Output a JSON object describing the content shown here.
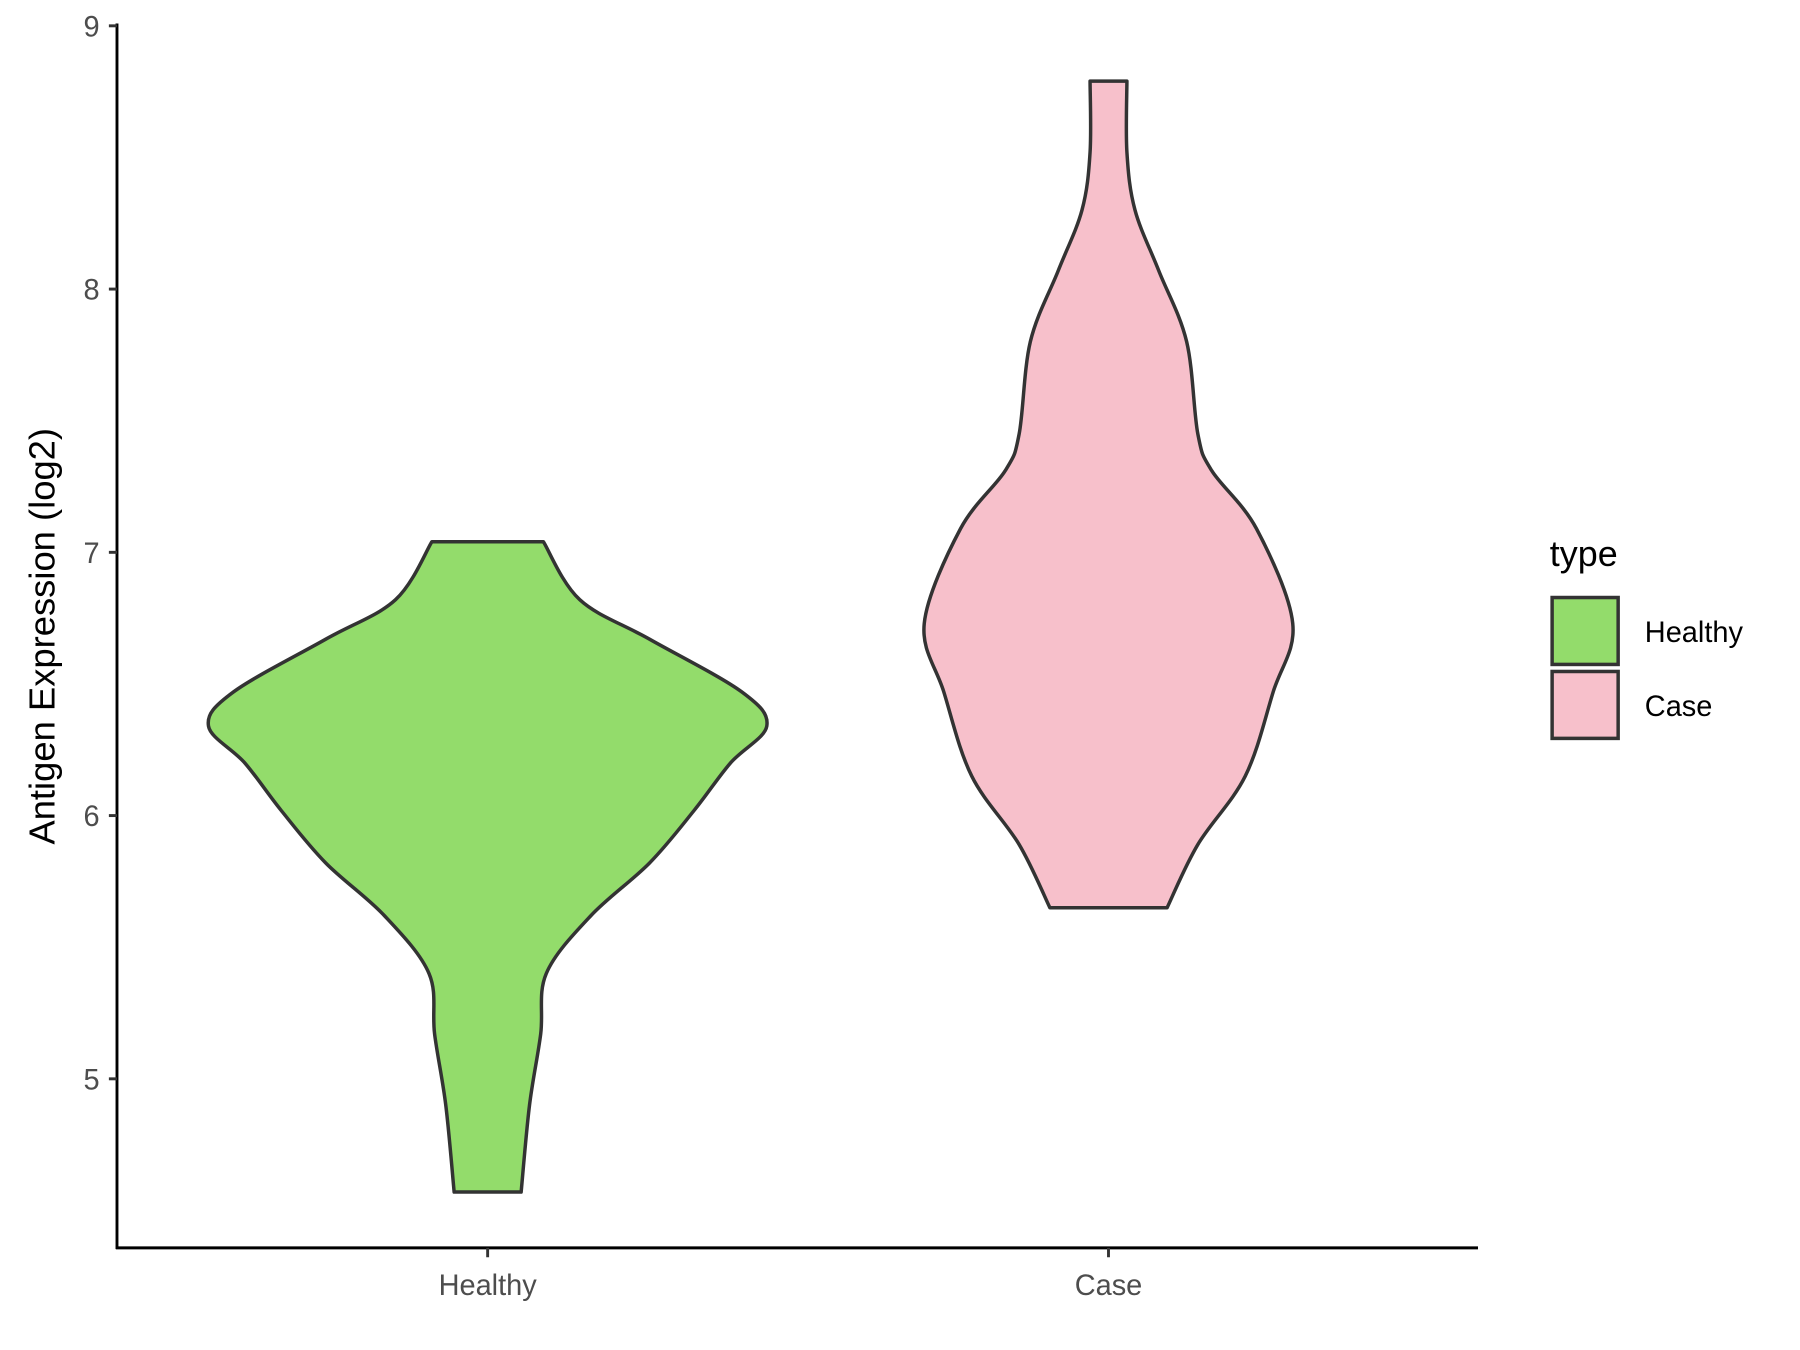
{
  "chart_data": {
    "type": "violin",
    "title": "",
    "xlabel": "",
    "ylabel": "Antigen Expression (log2)",
    "ylim": [
      4.35,
      9
    ],
    "yticks": [
      "5",
      "6",
      "7",
      "8",
      "9"
    ],
    "categories": [
      "Healthy",
      "Case"
    ],
    "grid": false,
    "legend": {
      "title": "type",
      "position": "right",
      "entries": [
        "Healthy",
        "Case"
      ]
    },
    "colors": {
      "Healthy": "#93dc6b",
      "Case": "#f7c0cb",
      "outline": "#333333"
    },
    "series": [
      {
        "name": "Healthy",
        "min": 4.57,
        "max": 7.04,
        "profile": [
          [
            4.57,
            0.12
          ],
          [
            4.9,
            0.15
          ],
          [
            5.17,
            0.19
          ],
          [
            5.4,
            0.21
          ],
          [
            5.62,
            0.37
          ],
          [
            5.82,
            0.58
          ],
          [
            6.02,
            0.74
          ],
          [
            6.2,
            0.87
          ],
          [
            6.34,
            1.0
          ],
          [
            6.47,
            0.91
          ],
          [
            6.67,
            0.58
          ],
          [
            6.82,
            0.33
          ],
          [
            7.04,
            0.2
          ]
        ]
      },
      {
        "name": "Case",
        "min": 5.65,
        "max": 8.79,
        "profile": [
          [
            5.65,
            0.21
          ],
          [
            5.89,
            0.32
          ],
          [
            6.15,
            0.49
          ],
          [
            6.47,
            0.59
          ],
          [
            6.73,
            0.66
          ],
          [
            7.09,
            0.53
          ],
          [
            7.31,
            0.37
          ],
          [
            7.45,
            0.32
          ],
          [
            7.8,
            0.28
          ],
          [
            8.07,
            0.18
          ],
          [
            8.3,
            0.095
          ],
          [
            8.52,
            0.066
          ],
          [
            8.79,
            0.066
          ]
        ]
      }
    ]
  }
}
